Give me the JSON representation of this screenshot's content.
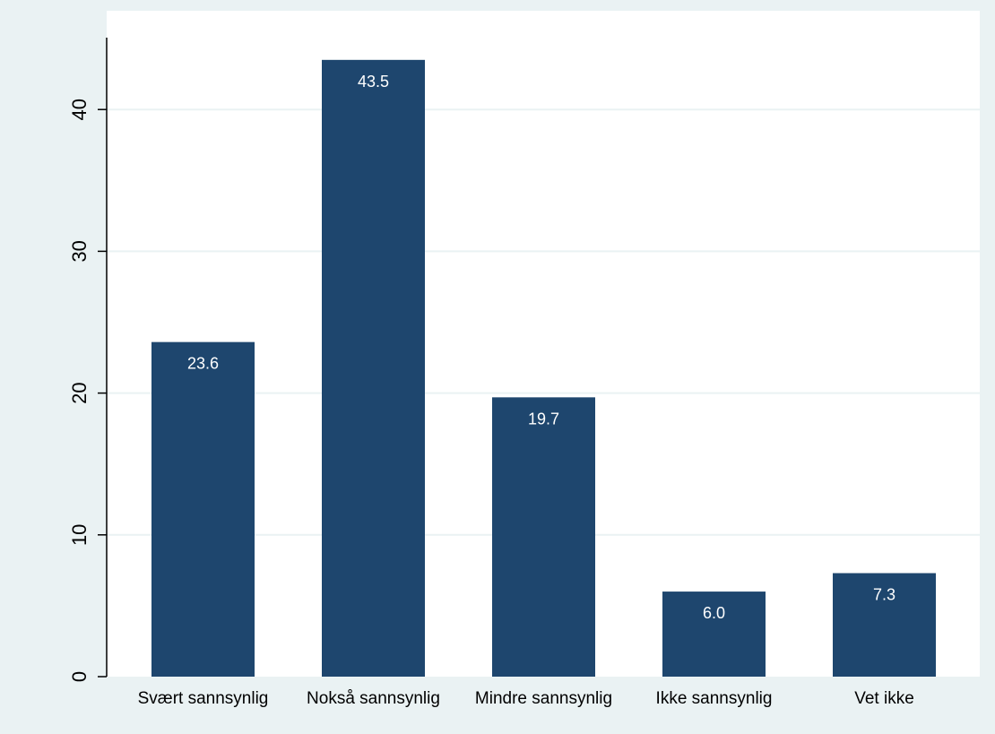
{
  "chart_data": {
    "type": "bar",
    "categories": [
      "Svært sannsynlig",
      "Nokså sannsynlig",
      "Mindre sannsynlig",
      "Ikke sannsynlig",
      "Vet ikke"
    ],
    "values": [
      23.6,
      43.5,
      19.7,
      6.0,
      7.3
    ],
    "value_labels": [
      "23.6",
      "43.5",
      "19.7",
      "6.0",
      "7.3"
    ],
    "yticks": [
      0,
      10,
      20,
      30,
      40
    ],
    "ylim": [
      0,
      43.5
    ],
    "grid": true,
    "title": "",
    "xlabel": "",
    "ylabel": "",
    "colors": {
      "bar": "#1e466e",
      "outer_background": "#eaf2f3",
      "plot_background": "#ffffff",
      "grid": "#eaf2f3",
      "axis": "#000000",
      "value_label": "#ffffff"
    }
  }
}
